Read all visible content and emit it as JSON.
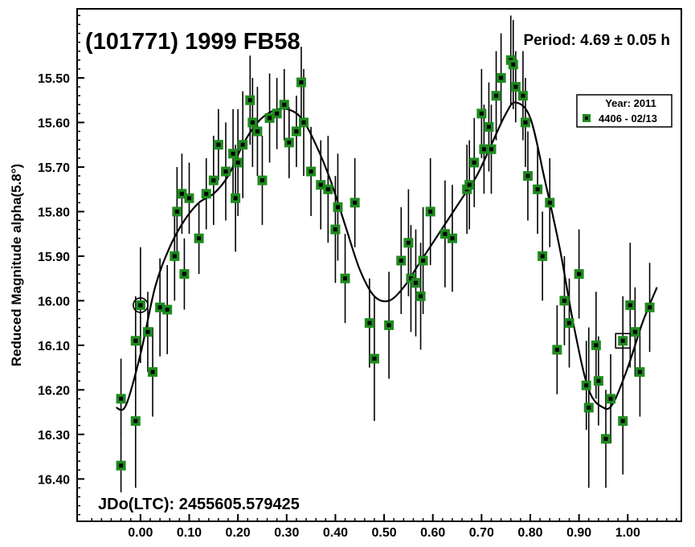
{
  "colors": {
    "marker_fill": "#1f8a1f",
    "marker_center": "#000000",
    "curve": "#000000",
    "frame": "#000000"
  },
  "chart_data": {
    "type": "scatter",
    "title": "(101771) 1999 FB58",
    "period": "Period: 4.69 ± 0.05 h",
    "jd_label": "JDo(LTC): 2455605.579425",
    "xlabel": "",
    "ylabel": "Reduced Magnitude alpha(5.8°)",
    "xlim": [
      -0.13,
      1.11
    ],
    "ylim": [
      16.495,
      15.345
    ],
    "y_inverted": true,
    "x_ticks": [
      0.0,
      0.1,
      0.2,
      0.3,
      0.4,
      0.5,
      0.6,
      0.7,
      0.8,
      0.9,
      1.0
    ],
    "x_tick_labels": [
      "0.00",
      "0.10",
      "0.20",
      "0.30",
      "0.40",
      "0.50",
      "0.60",
      "0.70",
      "0.80",
      "0.90",
      "1.00"
    ],
    "y_ticks": [
      15.5,
      15.6,
      15.7,
      15.8,
      15.9,
      16.0,
      16.1,
      16.2,
      16.3,
      16.4
    ],
    "y_tick_labels": [
      "15.50",
      "15.60",
      "15.70",
      "15.80",
      "15.90",
      "16.00",
      "16.10",
      "16.20",
      "16.30",
      "16.40"
    ],
    "legend": {
      "title": "Year: 2011",
      "entries": [
        "4406 - 02/13"
      ],
      "position": "top-right"
    },
    "series": [
      {
        "name": "4406 - 02/13",
        "x": [
          -0.04,
          -0.04,
          -0.01,
          -0.01,
          0.0,
          0.015,
          0.025,
          0.04,
          0.055,
          0.07,
          0.075,
          0.085,
          0.09,
          0.1,
          0.12,
          0.135,
          0.15,
          0.16,
          0.175,
          0.19,
          0.195,
          0.2,
          0.21,
          0.225,
          0.23,
          0.24,
          0.25,
          0.265,
          0.28,
          0.295,
          0.305,
          0.32,
          0.33,
          0.335,
          0.35,
          0.37,
          0.385,
          0.4,
          0.405,
          0.42,
          0.44,
          0.47,
          0.48,
          0.51,
          0.535,
          0.55,
          0.555,
          0.565,
          0.575,
          0.58,
          0.595,
          0.625,
          0.64,
          0.67,
          0.675,
          0.685,
          0.7,
          0.705,
          0.715,
          0.72,
          0.73,
          0.74,
          0.76,
          0.765,
          0.77,
          0.785,
          0.79,
          0.795,
          0.815,
          0.825,
          0.84,
          0.855,
          0.87,
          0.88,
          0.9,
          0.915,
          0.92,
          0.935,
          0.94,
          0.955,
          0.965,
          0.99,
          0.99,
          1.005,
          1.015,
          1.025,
          1.045
        ],
        "y": [
          16.37,
          16.22,
          16.27,
          16.09,
          16.01,
          16.07,
          16.16,
          16.015,
          16.02,
          15.9,
          15.8,
          15.76,
          15.94,
          15.77,
          15.86,
          15.76,
          15.73,
          15.65,
          15.71,
          15.67,
          15.77,
          15.69,
          15.65,
          15.55,
          15.6,
          15.62,
          15.73,
          15.59,
          15.58,
          15.56,
          15.645,
          15.62,
          15.51,
          15.6,
          15.71,
          15.74,
          15.75,
          15.84,
          15.79,
          15.95,
          15.78,
          16.05,
          16.13,
          16.055,
          15.91,
          15.87,
          15.95,
          15.96,
          15.99,
          15.91,
          15.8,
          15.85,
          15.86,
          15.75,
          15.74,
          15.69,
          15.58,
          15.66,
          15.61,
          15.66,
          15.54,
          15.5,
          15.46,
          15.47,
          15.52,
          15.54,
          15.6,
          15.72,
          15.75,
          15.9,
          15.78,
          16.11,
          16.0,
          16.05,
          15.94,
          16.19,
          16.24,
          16.1,
          16.18,
          16.31,
          16.22,
          16.27,
          16.09,
          16.01,
          16.07,
          16.16,
          16.015
        ],
        "err": [
          0.06,
          0.09,
          0.15,
          0.1,
          0.13,
          0.09,
          0.1,
          0.11,
          0.1,
          0.1,
          0.1,
          0.09,
          0.08,
          0.08,
          0.08,
          0.08,
          0.1,
          0.08,
          0.11,
          0.1,
          0.12,
          0.12,
          0.12,
          0.1,
          0.1,
          0.1,
          0.1,
          0.1,
          0.08,
          0.08,
          0.08,
          0.08,
          0.08,
          0.12,
          0.1,
          0.1,
          0.12,
          0.12,
          0.12,
          0.1,
          0.1,
          0.1,
          0.14,
          0.12,
          0.12,
          0.12,
          0.12,
          0.12,
          0.12,
          0.12,
          0.12,
          0.12,
          0.12,
          0.1,
          0.1,
          0.1,
          0.1,
          0.1,
          0.1,
          0.1,
          0.1,
          0.1,
          0.1,
          0.1,
          0.08,
          0.1,
          0.1,
          0.1,
          0.1,
          0.1,
          0.1,
          0.1,
          0.1,
          0.1,
          0.1,
          0.1,
          0.18,
          0.12,
          0.1,
          0.11,
          0.1,
          0.12,
          0.1,
          0.14,
          0.1,
          0.1,
          0.1
        ]
      }
    ],
    "fit_curve": {
      "name": "Fourier fit",
      "x": [
        -0.05,
        -0.03,
        0.0,
        0.03,
        0.06,
        0.09,
        0.12,
        0.15,
        0.18,
        0.21,
        0.24,
        0.27,
        0.3,
        0.33,
        0.36,
        0.39,
        0.42,
        0.45,
        0.48,
        0.51,
        0.54,
        0.57,
        0.6,
        0.63,
        0.66,
        0.69,
        0.72,
        0.75,
        0.77,
        0.8,
        0.83,
        0.86,
        0.89,
        0.92,
        0.95,
        0.97,
        1.0,
        1.03,
        1.06
      ],
      "y": [
        16.24,
        16.235,
        16.12,
        15.97,
        15.88,
        15.82,
        15.78,
        15.76,
        15.72,
        15.65,
        15.6,
        15.575,
        15.57,
        15.59,
        15.65,
        15.73,
        15.83,
        15.93,
        15.99,
        16.0,
        15.97,
        15.92,
        15.87,
        15.82,
        15.77,
        15.72,
        15.65,
        15.58,
        15.555,
        15.59,
        15.73,
        15.88,
        16.06,
        16.2,
        16.24,
        16.23,
        16.15,
        16.05,
        15.97
      ]
    },
    "highlighted_points": [
      {
        "shape": "circle",
        "x": 0.0,
        "y": 16.01
      },
      {
        "shape": "square",
        "x": 0.99,
        "y": 16.09
      }
    ]
  }
}
